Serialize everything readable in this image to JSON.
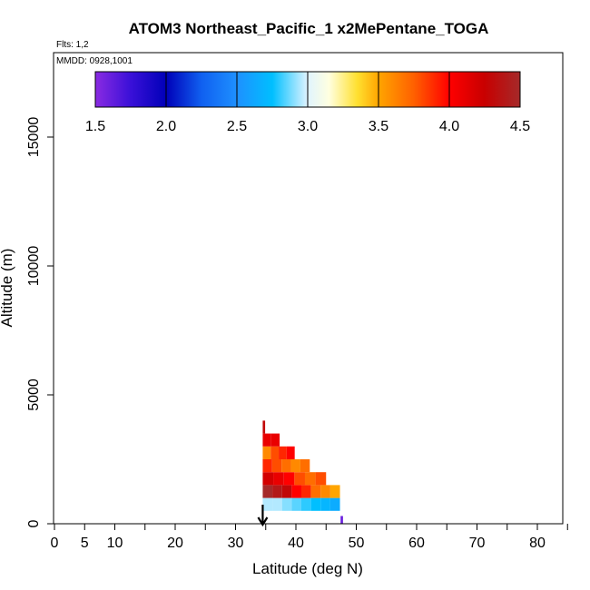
{
  "chart_data": {
    "type": "heatmap",
    "title": "ATOM3 Northeast_Pacific_1 x2MePentane_TOGA",
    "flights_note": "Flts: 1,2",
    "date_note": "MMDD: 0928,1001",
    "xlabel": "Latitude (deg N)",
    "ylabel": "Altitude (m)",
    "xlim": [
      0,
      85
    ],
    "ylim": [
      0,
      18000
    ],
    "x_ticks": [
      0,
      5,
      10,
      20,
      30,
      40,
      50,
      60,
      70,
      80
    ],
    "y_ticks": [
      0,
      5000,
      10000,
      15000
    ],
    "colorbar": {
      "min": 1.5,
      "max": 4.5,
      "tick_values": [
        1.5,
        2.0,
        2.5,
        3.0,
        3.5,
        4.0,
        4.5
      ],
      "tick_labels": [
        "1.5",
        "2.0",
        "2.5",
        "3.0",
        "3.5",
        "4.0",
        "4.5"
      ],
      "stops": [
        {
          "v": 1.5,
          "color": "#8a2be2"
        },
        {
          "v": 1.75,
          "color": "#3a10d8"
        },
        {
          "v": 2.0,
          "color": "#0000b8"
        },
        {
          "v": 2.25,
          "color": "#1060f0"
        },
        {
          "v": 2.5,
          "color": "#1e90ff"
        },
        {
          "v": 2.75,
          "color": "#00bfff"
        },
        {
          "v": 3.0,
          "color": "#e0f4ff"
        },
        {
          "v": 3.15,
          "color": "#ffffe0"
        },
        {
          "v": 3.35,
          "color": "#ffe030"
        },
        {
          "v": 3.5,
          "color": "#ffa500"
        },
        {
          "v": 3.75,
          "color": "#ff6000"
        },
        {
          "v": 4.0,
          "color": "#ff0000"
        },
        {
          "v": 4.25,
          "color": "#c80000"
        },
        {
          "v": 4.5,
          "color": "#a52a2a"
        }
      ]
    },
    "flight_marker_lat": 34.5,
    "rows": [
      {
        "alt_bottom": 0,
        "alt_top": 300,
        "lat_start": 47.4,
        "lat_end": 47.8,
        "values": [
          1.6
        ]
      },
      {
        "alt_bottom": 500,
        "alt_top": 1000,
        "lat_start": 34.5,
        "lat_end": 47.3,
        "values": [
          2.95,
          2.95,
          2.9,
          2.85,
          2.8,
          2.75,
          2.7,
          2.65
        ]
      },
      {
        "alt_bottom": 1000,
        "alt_top": 1500,
        "lat_start": 34.5,
        "lat_end": 47.3,
        "values": [
          4.5,
          4.4,
          4.3,
          4.0,
          3.9,
          3.7,
          3.6,
          3.5
        ]
      },
      {
        "alt_bottom": 1500,
        "alt_top": 2000,
        "lat_start": 34.5,
        "lat_end": 45.0,
        "values": [
          4.2,
          4.1,
          4.0,
          3.8,
          3.7,
          3.8
        ]
      },
      {
        "alt_bottom": 2000,
        "alt_top": 2500,
        "lat_start": 34.5,
        "lat_end": 42.3,
        "values": [
          3.9,
          3.8,
          3.7,
          3.6,
          3.7
        ]
      },
      {
        "alt_bottom": 2500,
        "alt_top": 3000,
        "lat_start": 34.5,
        "lat_end": 39.8,
        "values": [
          3.6,
          3.8,
          3.9,
          4.0
        ]
      },
      {
        "alt_bottom": 3000,
        "alt_top": 3500,
        "lat_start": 34.5,
        "lat_end": 37.3,
        "values": [
          4.1,
          4.1
        ]
      },
      {
        "alt_bottom": 3500,
        "alt_top": 4000,
        "lat_start": 34.5,
        "lat_end": 34.9,
        "values": [
          4.3
        ]
      }
    ]
  }
}
